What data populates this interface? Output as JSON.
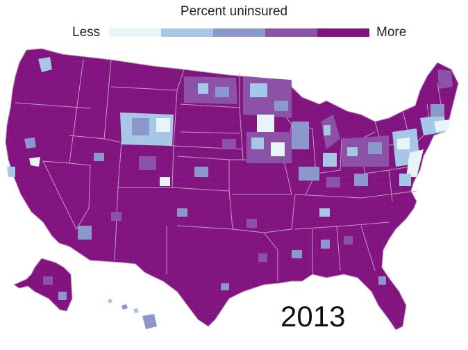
{
  "legend": {
    "title": "Percent uninsured",
    "less_label": "Less",
    "more_label": "More",
    "bins": [
      "#e7f5f9",
      "#a7c7e6",
      "#8c97cc",
      "#8b52a8",
      "#81147f"
    ]
  },
  "map": {
    "year": "2013",
    "base_color": "#81147f",
    "border_color": "#c79bc8"
  }
}
